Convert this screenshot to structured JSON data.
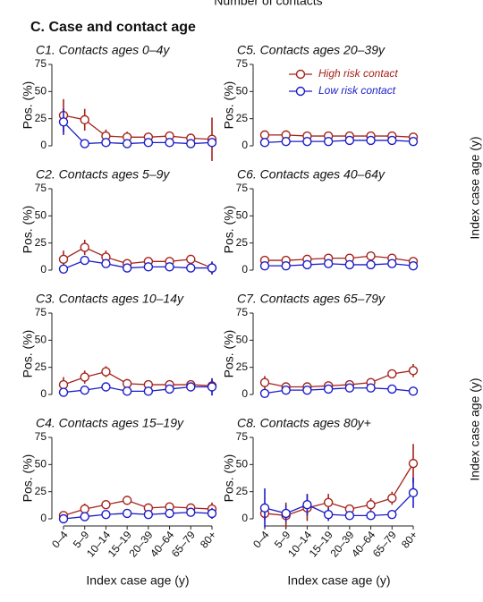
{
  "top_label": "Number of contacts",
  "section_title": "C. Case and contact age",
  "categories": [
    "0–4",
    "5–9",
    "10–14",
    "15–19",
    "20–39",
    "40–64",
    "65–79",
    "80+"
  ],
  "right_labels": [
    "Index case age (y)",
    "Index case age (y)"
  ],
  "chart_data": [
    {
      "type": "line",
      "title": "C1. Contacts ages 0–4y",
      "ylabel": "Pos. (%)",
      "ylim": [
        0,
        75
      ],
      "yticks": [
        0,
        25,
        50,
        75
      ],
      "series": [
        {
          "color": "#a3231c",
          "values": [
            28,
            24,
            9,
            8,
            8,
            9,
            7,
            6
          ],
          "errors": [
            15,
            10,
            6,
            5,
            4,
            4,
            4,
            20
          ]
        },
        {
          "color": "#1c1cc8",
          "values": [
            22,
            2,
            3,
            2,
            3,
            3,
            2,
            3
          ],
          "errors": [
            12,
            2,
            2,
            2,
            2,
            2,
            2,
            4
          ]
        }
      ]
    },
    {
      "type": "line",
      "title": "C2. Contacts ages 5–9y",
      "ylabel": "Pos. (%)",
      "ylim": [
        0,
        75
      ],
      "yticks": [
        0,
        25,
        50,
        75
      ],
      "series": [
        {
          "color": "#a3231c",
          "values": [
            10,
            21,
            12,
            6,
            8,
            8,
            10,
            2
          ],
          "errors": [
            8,
            7,
            6,
            4,
            4,
            4,
            4,
            5
          ]
        },
        {
          "color": "#1c1cc8",
          "values": [
            1,
            9,
            6,
            2,
            3,
            3,
            2,
            2
          ],
          "errors": [
            2,
            4,
            3,
            2,
            2,
            2,
            2,
            6
          ]
        }
      ]
    },
    {
      "type": "line",
      "title": "C3. Contacts ages 10–14y",
      "ylabel": "Pos. (%)",
      "ylim": [
        0,
        75
      ],
      "yticks": [
        0,
        25,
        50,
        75
      ],
      "series": [
        {
          "color": "#a3231c",
          "values": [
            9,
            16,
            21,
            10,
            9,
            9,
            9,
            8
          ],
          "errors": [
            7,
            6,
            5,
            4,
            3,
            3,
            4,
            6
          ]
        },
        {
          "color": "#1c1cc8",
          "values": [
            2,
            4,
            7,
            3,
            3,
            5,
            7,
            7
          ],
          "errors": [
            3,
            3,
            3,
            2,
            2,
            2,
            3,
            8
          ]
        }
      ]
    },
    {
      "type": "line",
      "title": "C4. Contacts ages 15–19y",
      "ylabel": "Pos. (%)",
      "xlabel": "Index case age (y)",
      "ylim": [
        0,
        75
      ],
      "yticks": [
        0,
        25,
        50,
        75
      ],
      "series": [
        {
          "color": "#a3231c",
          "values": [
            3,
            9,
            13,
            17,
            10,
            11,
            10,
            9
          ],
          "errors": [
            4,
            5,
            4,
            4,
            3,
            3,
            3,
            6
          ]
        },
        {
          "color": "#1c1cc8",
          "values": [
            0,
            2,
            4,
            5,
            4,
            5,
            6,
            5
          ],
          "errors": [
            2,
            2,
            2,
            2,
            2,
            2,
            2,
            5
          ]
        }
      ]
    },
    {
      "type": "line",
      "title": "C5. Contacts ages 20–39y",
      "ylabel": "Pos. (%)",
      "ylim": [
        0,
        75
      ],
      "yticks": [
        0,
        25,
        50,
        75
      ],
      "legend": "upper right",
      "series": [
        {
          "name": "High risk contact",
          "color": "#a3231c",
          "values": [
            10,
            10,
            9,
            9,
            9,
            9,
            9,
            8
          ],
          "errors": [
            3,
            3,
            2,
            2,
            2,
            2,
            2,
            3
          ]
        },
        {
          "name": "Low risk contact",
          "color": "#1c1cc8",
          "values": [
            3,
            4,
            4,
            4,
            5,
            5,
            5,
            4
          ],
          "errors": [
            2,
            2,
            2,
            2,
            2,
            2,
            2,
            3
          ]
        }
      ]
    },
    {
      "type": "line",
      "title": "C6. Contacts ages 40–64y",
      "ylabel": "Pos. (%)",
      "ylim": [
        0,
        75
      ],
      "yticks": [
        0,
        25,
        50,
        75
      ],
      "series": [
        {
          "color": "#a3231c",
          "values": [
            9,
            9,
            10,
            11,
            11,
            13,
            11,
            8
          ],
          "errors": [
            3,
            2,
            2,
            2,
            2,
            2,
            2,
            3
          ]
        },
        {
          "color": "#1c1cc8",
          "values": [
            4,
            4,
            5,
            6,
            5,
            5,
            6,
            4
          ],
          "errors": [
            2,
            2,
            2,
            2,
            2,
            2,
            2,
            3
          ]
        }
      ]
    },
    {
      "type": "line",
      "title": "C7. Contacts ages 65–79y",
      "ylabel": "Pos. (%)",
      "ylim": [
        0,
        75
      ],
      "yticks": [
        0,
        25,
        50,
        75
      ],
      "series": [
        {
          "color": "#a3231c",
          "values": [
            11,
            7,
            7,
            8,
            9,
            11,
            19,
            22
          ],
          "errors": [
            6,
            3,
            3,
            3,
            3,
            3,
            4,
            6
          ]
        },
        {
          "color": "#1c1cc8",
          "values": [
            1,
            4,
            4,
            5,
            6,
            6,
            5,
            3
          ],
          "errors": [
            2,
            2,
            2,
            2,
            2,
            2,
            2,
            3
          ]
        }
      ]
    },
    {
      "type": "line",
      "title": "C8. Contacts ages 80y+",
      "ylabel": "Pos. (%)",
      "xlabel": "Index case age (y)",
      "ylim": [
        0,
        75
      ],
      "yticks": [
        0,
        25,
        50,
        75
      ],
      "series": [
        {
          "color": "#a3231c",
          "values": [
            5,
            3,
            10,
            15,
            9,
            13,
            19,
            51
          ],
          "errors": [
            6,
            12,
            12,
            8,
            4,
            6,
            6,
            18
          ]
        },
        {
          "color": "#1c1cc8",
          "values": [
            10,
            5,
            13,
            4,
            3,
            3,
            4,
            24
          ],
          "errors": [
            18,
            8,
            10,
            6,
            3,
            2,
            3,
            14
          ]
        }
      ]
    }
  ]
}
